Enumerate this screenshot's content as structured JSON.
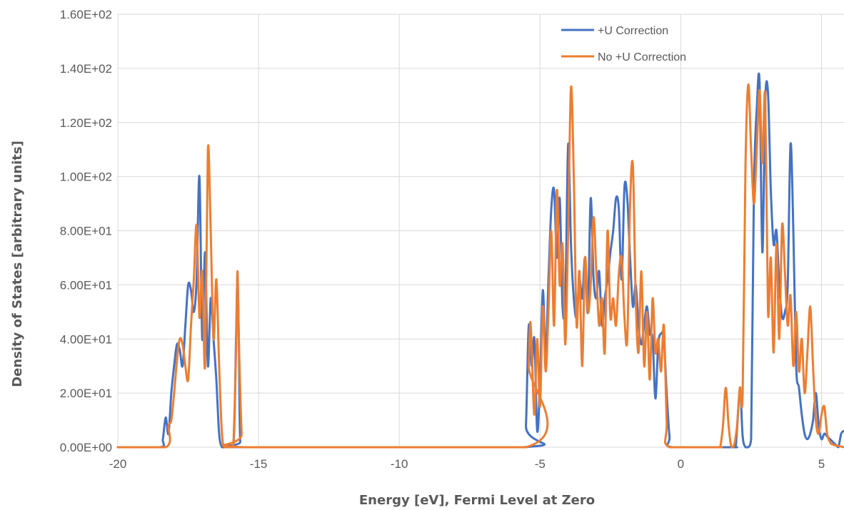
{
  "chart_data": {
    "type": "line",
    "title": "",
    "xlabel": "Energy [eV], Fermi Level at Zero",
    "ylabel": "Density of States [arbitrary units]",
    "xlim": [
      -20,
      5.8
    ],
    "ylim": [
      0,
      160
    ],
    "x_ticks": [
      -20,
      -15,
      -10,
      -5,
      0,
      5
    ],
    "y_ticks": [
      0,
      20,
      40,
      60,
      80,
      100,
      120,
      140,
      160
    ],
    "y_tick_labels": [
      "0.00E+00",
      "2.00E+01",
      "4.00E+01",
      "6.00E+01",
      "8.00E+01",
      "1.00E+02",
      "1.20E+02",
      "1.40E+02",
      "1.60E+02"
    ],
    "x_tick_labels": [
      "-20",
      "-15",
      "-10",
      "-5",
      "0",
      "5"
    ],
    "grid": "vertical",
    "legend_position": "top-right",
    "series": [
      {
        "name": "+U Correction",
        "color": "#4472c4",
        "x": [
          -20,
          -18.5,
          -18.4,
          -18.3,
          -18.2,
          -18.1,
          -18.0,
          -17.9,
          -17.8,
          -17.7,
          -17.6,
          -17.5,
          -17.4,
          -17.3,
          -17.2,
          -17.1,
          -17.0,
          -16.9,
          -16.8,
          -16.7,
          -16.6,
          -16.5,
          -16.4,
          -16.3,
          -16.2,
          -15.9,
          -15.8,
          -15.75,
          -15.7,
          -15.65,
          -15.5,
          -5.6,
          -5.5,
          -5.4,
          -5.3,
          -5.2,
          -5.1,
          -5.0,
          -4.9,
          -4.8,
          -4.7,
          -4.6,
          -4.5,
          -4.4,
          -4.3,
          -4.2,
          -4.1,
          -4.0,
          -3.9,
          -3.8,
          -3.7,
          -3.6,
          -3.5,
          -3.4,
          -3.3,
          -3.2,
          -3.1,
          -3.0,
          -2.9,
          -2.8,
          -2.7,
          -2.6,
          -2.5,
          -2.4,
          -2.3,
          -2.2,
          -2.1,
          -2.0,
          -1.9,
          -1.8,
          -1.7,
          -1.6,
          -1.5,
          -1.4,
          -1.3,
          -1.2,
          -1.1,
          -1.0,
          -0.9,
          -0.8,
          -0.7,
          -0.6,
          -0.5,
          -0.4,
          -0.3,
          1.8,
          1.95,
          2.1,
          2.2,
          2.3,
          2.4,
          2.5,
          2.6,
          2.7,
          2.8,
          2.9,
          3.0,
          3.1,
          3.2,
          3.3,
          3.4,
          3.5,
          3.6,
          3.7,
          3.8,
          3.9,
          4.0,
          4.1,
          4.2,
          4.3,
          4.4,
          4.5,
          4.6,
          4.7,
          4.8,
          4.9,
          5.0,
          5.1,
          5.2,
          5.3,
          5.4,
          5.5,
          5.6,
          5.7,
          5.8
        ],
        "y": [
          0,
          0,
          3,
          11,
          5,
          20,
          30,
          38,
          36,
          30,
          45,
          60,
          58,
          50,
          62,
          100,
          40,
          72,
          30,
          55,
          40,
          25,
          5,
          0,
          0,
          0,
          40,
          62,
          40,
          2,
          0,
          0,
          8,
          45,
          30,
          40,
          6,
          25,
          58,
          34,
          62,
          88,
          95,
          70,
          92,
          52,
          55,
          112,
          75,
          55,
          48,
          62,
          55,
          70,
          50,
          92,
          63,
          55,
          65,
          45,
          55,
          62,
          72,
          80,
          92,
          88,
          62,
          96,
          92,
          70,
          52,
          60,
          45,
          38,
          45,
          52,
          42,
          40,
          18,
          38,
          42,
          40,
          20,
          4,
          0,
          0,
          0,
          21,
          4,
          0,
          0,
          3,
          95,
          125,
          135,
          72,
          128,
          131,
          95,
          75,
          80,
          60,
          48,
          50,
          60,
          112,
          80,
          30,
          22,
          12,
          5,
          3,
          5,
          10,
          20,
          8,
          3,
          5,
          4,
          3,
          2,
          1,
          0,
          5,
          6
        ]
      },
      {
        "name": "No +U Correction",
        "color": "#ed7d31",
        "x": [
          -20,
          -18.3,
          -18.2,
          -18.1,
          -18.0,
          -17.9,
          -17.8,
          -17.7,
          -17.6,
          -17.5,
          -17.4,
          -17.3,
          -17.2,
          -17.1,
          -17.0,
          -16.9,
          -16.8,
          -16.7,
          -16.6,
          -16.5,
          -16.4,
          -16.3,
          -16.2,
          -16.0,
          -15.9,
          -15.8,
          -15.75,
          -15.7,
          -15.6,
          -15.5,
          -5.5,
          -5.4,
          -5.35,
          -5.3,
          -5.2,
          -5.1,
          -5.0,
          -4.9,
          -4.8,
          -4.7,
          -4.6,
          -4.5,
          -4.4,
          -4.3,
          -4.2,
          -4.1,
          -4.0,
          -3.9,
          -3.8,
          -3.7,
          -3.6,
          -3.5,
          -3.4,
          -3.3,
          -3.2,
          -3.1,
          -3.0,
          -2.9,
          -2.8,
          -2.7,
          -2.6,
          -2.5,
          -2.4,
          -2.3,
          -2.2,
          -2.1,
          -2.0,
          -1.9,
          -1.8,
          -1.7,
          -1.6,
          -1.5,
          -1.4,
          -1.3,
          -1.2,
          -1.1,
          -1.0,
          -0.9,
          -0.8,
          -0.7,
          -0.6,
          -0.5,
          -0.4,
          1.3,
          1.4,
          1.5,
          1.6,
          1.7,
          1.8,
          1.9,
          2.0,
          2.1,
          2.2,
          2.3,
          2.4,
          2.5,
          2.6,
          2.7,
          2.8,
          2.9,
          3.0,
          3.1,
          3.2,
          3.3,
          3.4,
          3.5,
          3.6,
          3.7,
          3.8,
          3.9,
          4.0,
          4.1,
          4.2,
          4.3,
          4.4,
          4.5,
          4.6,
          4.7,
          4.8,
          4.9,
          5.0,
          5.1,
          5.2,
          5.3,
          5.4,
          5.8
        ],
        "y": [
          0,
          0,
          8,
          10,
          20,
          32,
          40,
          38,
          30,
          25,
          45,
          62,
          82,
          48,
          65,
          30,
          110,
          80,
          40,
          62,
          30,
          5,
          0,
          0,
          0,
          35,
          65,
          40,
          5,
          0,
          0,
          30,
          46,
          38,
          12,
          40,
          15,
          52,
          28,
          50,
          80,
          45,
          95,
          60,
          75,
          38,
          80,
          133,
          100,
          45,
          65,
          30,
          70,
          50,
          60,
          85,
          65,
          45,
          55,
          35,
          80,
          48,
          55,
          45,
          64,
          70,
          48,
          40,
          90,
          104,
          55,
          35,
          65,
          30,
          50,
          25,
          55,
          35,
          40,
          28,
          45,
          10,
          0,
          0,
          0,
          8,
          22,
          8,
          0,
          1,
          8,
          22,
          20,
          104,
          134,
          110,
          90,
          110,
          132,
          105,
          130,
          50,
          70,
          35,
          75,
          40,
          82,
          65,
          45,
          56,
          30,
          50,
          28,
          40,
          20,
          35,
          52,
          30,
          10,
          5,
          12,
          15,
          5,
          2,
          1,
          0
        ]
      }
    ]
  }
}
